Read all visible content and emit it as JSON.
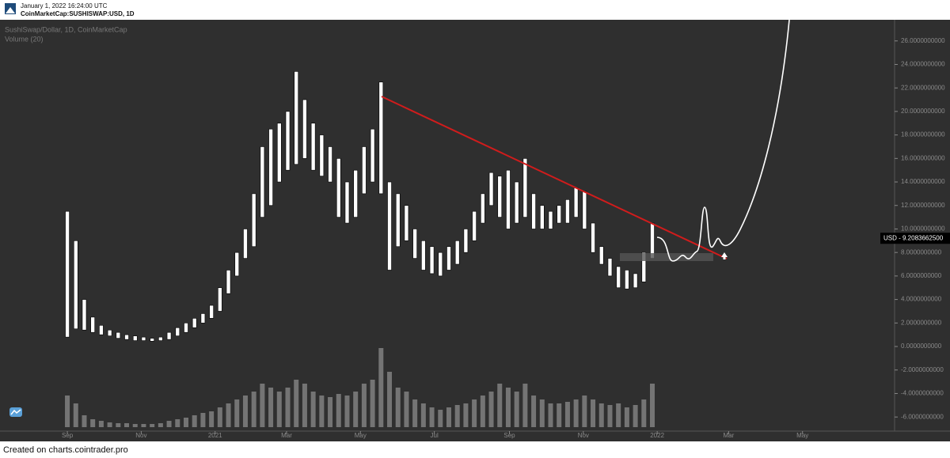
{
  "header": {
    "timestamp": "January 1, 2022 16:24:00 UTC",
    "symbol": "CoinMarketCap:SUSHISWAP:USD, 1D"
  },
  "footer": "Created on charts.cointrader.pro",
  "chart_data": {
    "type": "range-bar",
    "title": "SushiSwap/Dollar, 1D, CoinMarketCap",
    "subtitle": "Volume (20)",
    "x": [
      0,
      7,
      14,
      21,
      28,
      35,
      42,
      49,
      56,
      63,
      70,
      77,
      84,
      91,
      98,
      105,
      112,
      119,
      126,
      133,
      140,
      147,
      154,
      161,
      168,
      175,
      182,
      189,
      196,
      203,
      210,
      217,
      224,
      231,
      238,
      245,
      252,
      259,
      266,
      273,
      280,
      287,
      294,
      301,
      308,
      315,
      322,
      329,
      336,
      343,
      350,
      357,
      364,
      371,
      378,
      385,
      392,
      399,
      406,
      413,
      420,
      427,
      434,
      441,
      448,
      455,
      462,
      469,
      476,
      483
    ],
    "series": [
      {
        "name": "High",
        "color": "#ffffff",
        "values": [
          11.5,
          9,
          4,
          2.5,
          1.8,
          1.4,
          1.2,
          1.0,
          0.9,
          0.8,
          0.7,
          0.8,
          1.2,
          1.6,
          2.0,
          2.4,
          2.8,
          3.5,
          5,
          6.5,
          8,
          10,
          13,
          17,
          18.5,
          19,
          20,
          23.4,
          21,
          19,
          18,
          17,
          16,
          14,
          15,
          17,
          18.5,
          22.5,
          14,
          13,
          12,
          10,
          9,
          8.5,
          8,
          8.5,
          9,
          10,
          11.5,
          13,
          14.8,
          14.5,
          15,
          14,
          16,
          13,
          12,
          11.5,
          12,
          12.5,
          13.5,
          13.2,
          10.5,
          8.5,
          7.5,
          6.8,
          6.5,
          6.2,
          8,
          10.5
        ]
      },
      {
        "name": "Low",
        "color": "#ffffff",
        "values": [
          0.8,
          1.5,
          1.4,
          1.2,
          1.0,
          0.9,
          0.7,
          0.6,
          0.5,
          0.5,
          0.45,
          0.5,
          0.6,
          0.9,
          1.2,
          1.6,
          2.0,
          2.4,
          3,
          4.5,
          6,
          7.5,
          8.5,
          11,
          12,
          14,
          15,
          15.5,
          16,
          15,
          14.5,
          14,
          11,
          10.5,
          11,
          13,
          14,
          13,
          6.5,
          8.5,
          9,
          7.5,
          6.5,
          6.2,
          6,
          6.5,
          7,
          8,
          9,
          10.5,
          12,
          11,
          10,
          10.5,
          11,
          10,
          10,
          10,
          10.5,
          10.5,
          11,
          10,
          8,
          7,
          6,
          5,
          4.9,
          5,
          5.5,
          7.5
        ]
      }
    ],
    "volume": {
      "color": "#8c8c8c",
      "ylim": [
        0,
        100
      ],
      "values": [
        40,
        30,
        15,
        10,
        8,
        6,
        5,
        5,
        4,
        4,
        4,
        5,
        8,
        10,
        12,
        15,
        18,
        20,
        25,
        30,
        35,
        40,
        45,
        55,
        50,
        45,
        50,
        60,
        55,
        45,
        40,
        38,
        42,
        40,
        45,
        55,
        60,
        100,
        70,
        50,
        45,
        35,
        30,
        25,
        22,
        25,
        28,
        30,
        35,
        40,
        45,
        55,
        50,
        45,
        55,
        40,
        35,
        30,
        30,
        32,
        35,
        40,
        35,
        30,
        28,
        30,
        25,
        28,
        35,
        55
      ]
    },
    "xlim": [
      -55.6,
      683
    ],
    "xticks": [
      {
        "value": 0,
        "label": "Sep"
      },
      {
        "value": 61,
        "label": "Nov"
      },
      {
        "value": 122,
        "label": "2021"
      },
      {
        "value": 181,
        "label": "Mar"
      },
      {
        "value": 242,
        "label": "May"
      },
      {
        "value": 303,
        "label": "Jul"
      },
      {
        "value": 365,
        "label": "Sep"
      },
      {
        "value": 426,
        "label": "Nov"
      },
      {
        "value": 487,
        "label": "2022"
      },
      {
        "value": 546,
        "label": "Mar"
      },
      {
        "value": 607,
        "label": "May"
      }
    ],
    "ylim": [
      -7.2,
      27.8
    ],
    "yticks": [
      {
        "value": -6,
        "label": "-6.0000000000"
      },
      {
        "value": -4,
        "label": "-4.0000000000"
      },
      {
        "value": -2,
        "label": "-2.0000000000"
      },
      {
        "value": 0,
        "label": "0.0000000000"
      },
      {
        "value": 2,
        "label": "2.0000000000"
      },
      {
        "value": 4,
        "label": "4.0000000000"
      },
      {
        "value": 6,
        "label": "6.0000000000"
      },
      {
        "value": 8,
        "label": "8.0000000000"
      },
      {
        "value": 10,
        "label": "10.0000000000"
      },
      {
        "value": 12,
        "label": "12.0000000000"
      },
      {
        "value": 14,
        "label": "14.0000000000"
      },
      {
        "value": 16,
        "label": "16.0000000000"
      },
      {
        "value": 18,
        "label": "18.0000000000"
      },
      {
        "value": 20,
        "label": "20.0000000000"
      },
      {
        "value": 22,
        "label": "22.0000000000"
      },
      {
        "value": 24,
        "label": "24.0000000000"
      },
      {
        "value": 26,
        "label": "26.0000000000"
      }
    ],
    "last_price": {
      "value": 9.20836625,
      "label": "USD - 9.2083662500"
    }
  }
}
